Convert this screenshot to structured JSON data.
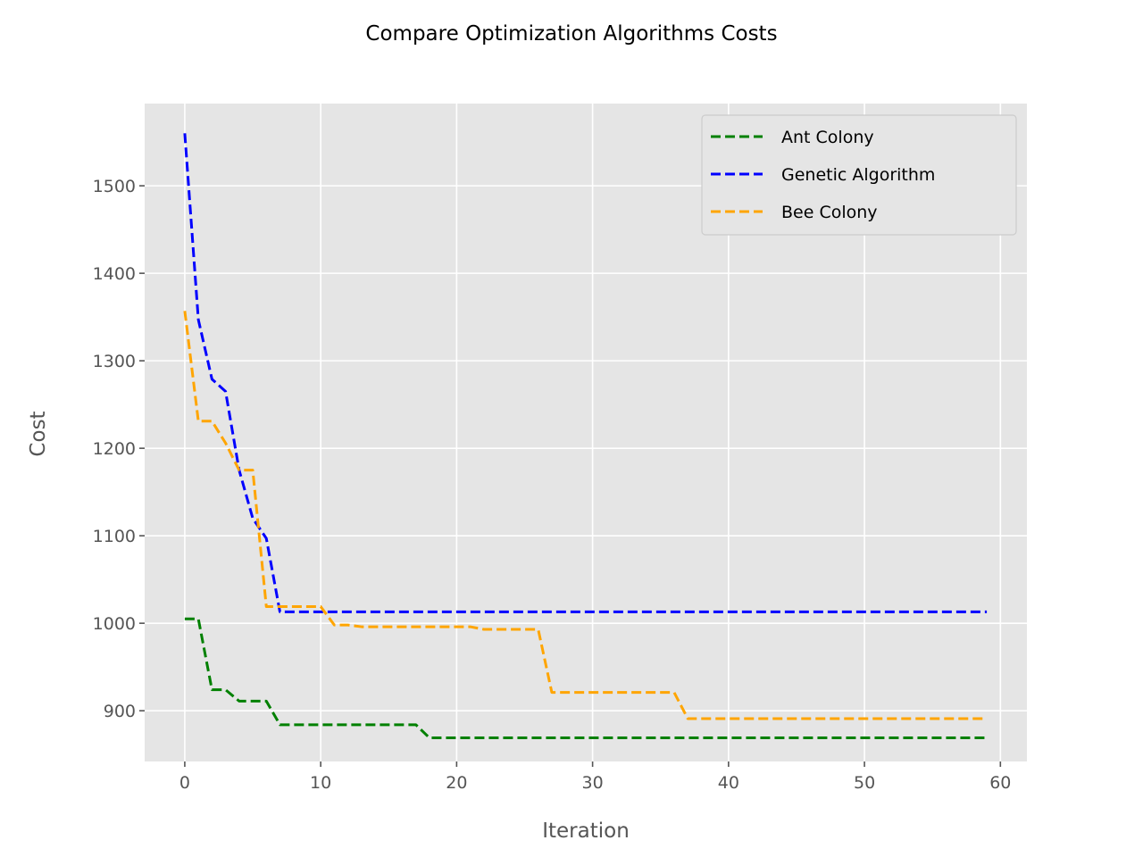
{
  "chart_data": {
    "type": "line",
    "title": "Compare Optimization Algorithms Costs",
    "xlabel": "Iteration",
    "ylabel": "Cost",
    "xlim": [
      -2.95,
      61.95
    ],
    "ylim": [
      842,
      1594
    ],
    "xticks": [
      0,
      10,
      20,
      30,
      40,
      50,
      60
    ],
    "yticks": [
      900,
      1000,
      1100,
      1200,
      1300,
      1400,
      1500
    ],
    "grid": true,
    "legend_position": "top-right",
    "series": [
      {
        "name": "Ant Colony",
        "color": "#008000",
        "linestyle": "dashed",
        "x": [
          0,
          1,
          2,
          3,
          4,
          5,
          6,
          7,
          8,
          9,
          10,
          11,
          12,
          13,
          14,
          15,
          16,
          17,
          18,
          19,
          20,
          21,
          22,
          23,
          24,
          25,
          26,
          27,
          28,
          29,
          30,
          31,
          32,
          33,
          34,
          35,
          36,
          37,
          38,
          39,
          40,
          41,
          42,
          43,
          44,
          45,
          46,
          47,
          48,
          49,
          50,
          51,
          52,
          53,
          54,
          55,
          56,
          57,
          58,
          59
        ],
        "values": [
          1005,
          1005,
          924,
          924,
          911,
          911,
          911,
          884,
          884,
          884,
          884,
          884,
          884,
          884,
          884,
          884,
          884,
          884,
          869,
          869,
          869,
          869,
          869,
          869,
          869,
          869,
          869,
          869,
          869,
          869,
          869,
          869,
          869,
          869,
          869,
          869,
          869,
          869,
          869,
          869,
          869,
          869,
          869,
          869,
          869,
          869,
          869,
          869,
          869,
          869,
          869,
          869,
          869,
          869,
          869,
          869,
          869,
          869,
          869,
          869
        ]
      },
      {
        "name": "Genetic Algorithm",
        "color": "#0000ff",
        "linestyle": "dashed",
        "x": [
          0,
          1,
          2,
          3,
          4,
          5,
          6,
          7,
          8,
          9,
          10,
          11,
          12,
          13,
          14,
          15,
          16,
          17,
          18,
          19,
          20,
          21,
          22,
          23,
          24,
          25,
          26,
          27,
          28,
          29,
          30,
          31,
          32,
          33,
          34,
          35,
          36,
          37,
          38,
          39,
          40,
          41,
          42,
          43,
          44,
          45,
          46,
          47,
          48,
          49,
          50,
          51,
          52,
          53,
          54,
          55,
          56,
          57,
          58,
          59
        ],
        "values": [
          1560,
          1347,
          1279,
          1265,
          1175,
          1120,
          1097,
          1013,
          1013,
          1013,
          1013,
          1013,
          1013,
          1013,
          1013,
          1013,
          1013,
          1013,
          1013,
          1013,
          1013,
          1013,
          1013,
          1013,
          1013,
          1013,
          1013,
          1013,
          1013,
          1013,
          1013,
          1013,
          1013,
          1013,
          1013,
          1013,
          1013,
          1013,
          1013,
          1013,
          1013,
          1013,
          1013,
          1013,
          1013,
          1013,
          1013,
          1013,
          1013,
          1013,
          1013,
          1013,
          1013,
          1013,
          1013,
          1013,
          1013,
          1013,
          1013,
          1013
        ]
      },
      {
        "name": "Bee Colony",
        "color": "#ffa500",
        "linestyle": "dashed",
        "x": [
          0,
          1,
          2,
          3,
          4,
          5,
          6,
          7,
          8,
          9,
          10,
          11,
          12,
          13,
          14,
          15,
          16,
          17,
          18,
          19,
          20,
          21,
          22,
          23,
          24,
          25,
          26,
          27,
          28,
          29,
          30,
          31,
          32,
          33,
          34,
          35,
          36,
          37,
          38,
          39,
          40,
          41,
          42,
          43,
          44,
          45,
          46,
          47,
          48,
          49,
          50,
          51,
          52,
          53,
          54,
          55,
          56,
          57,
          58,
          59
        ],
        "values": [
          1357,
          1231,
          1231,
          1206,
          1175,
          1175,
          1019,
          1019,
          1019,
          1019,
          1019,
          998,
          998,
          996,
          996,
          996,
          996,
          996,
          996,
          996,
          996,
          996,
          993,
          993,
          993,
          993,
          993,
          921,
          921,
          921,
          921,
          921,
          921,
          921,
          921,
          921,
          921,
          891,
          891,
          891,
          891,
          891,
          891,
          891,
          891,
          891,
          891,
          891,
          891,
          891,
          891,
          891,
          891,
          891,
          891,
          891,
          891,
          891,
          891,
          891
        ]
      }
    ]
  }
}
